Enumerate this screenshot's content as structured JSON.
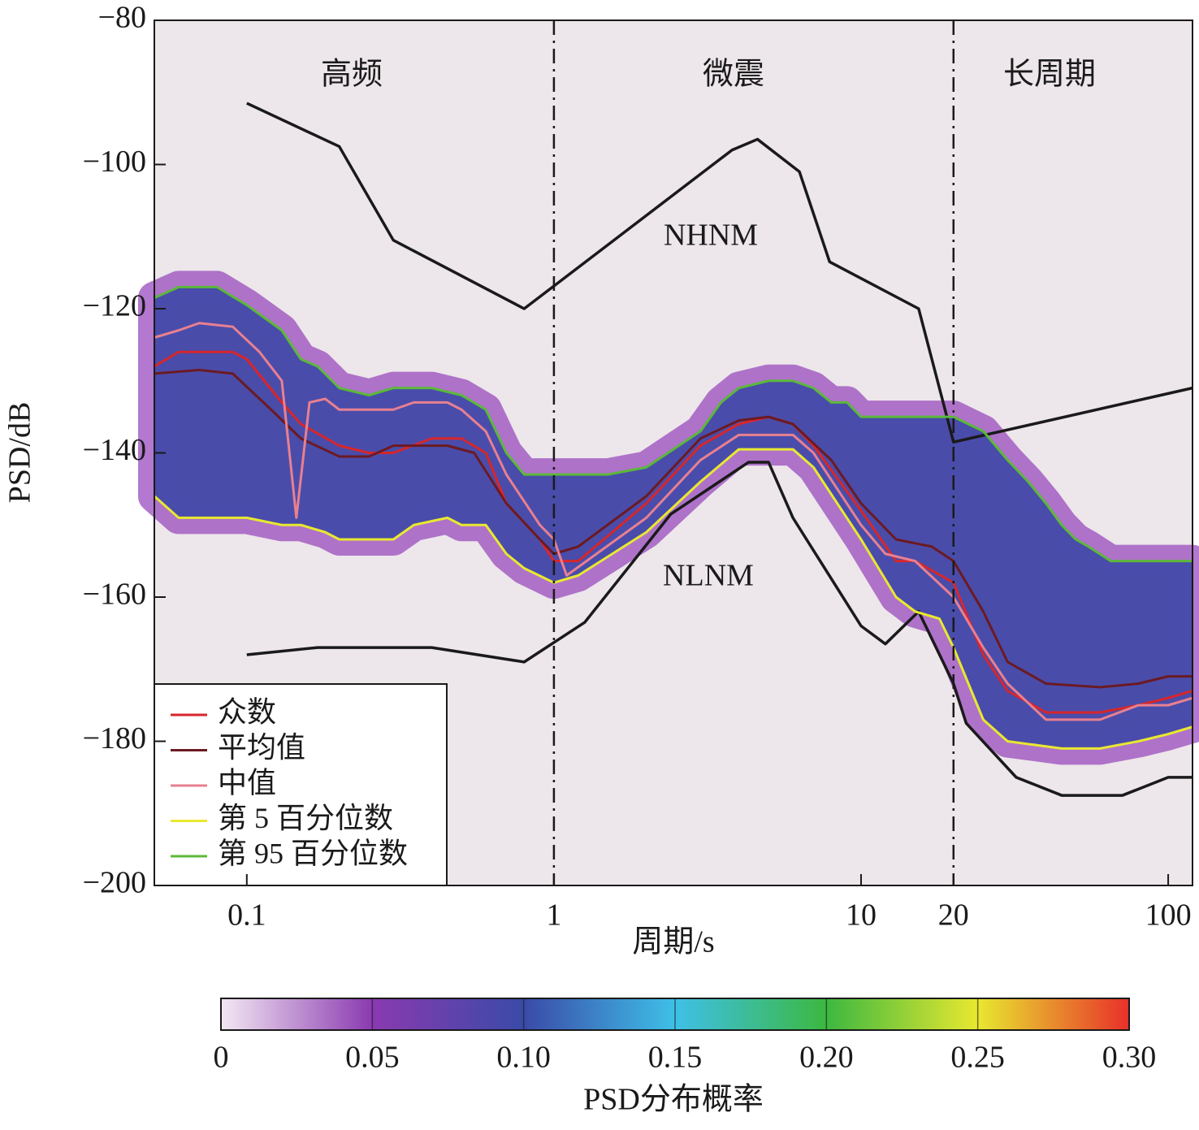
{
  "chart_data": {
    "type": "line",
    "xlabel": "周期/s",
    "ylabel": "PSD/dB",
    "xscale": "log",
    "xlim": [
      0.05,
      120
    ],
    "ylim": [
      -200,
      -80
    ],
    "xticks": [
      0.1,
      1,
      10,
      20,
      100
    ],
    "yticks": [
      {
        "value": -80,
        "label": "−80"
      },
      {
        "value": -100,
        "label": "−100"
      },
      {
        "value": -120,
        "label": "−120"
      },
      {
        "value": -140,
        "label": "−140"
      },
      {
        "value": -160,
        "label": "−160"
      },
      {
        "value": -180,
        "label": "−180"
      },
      {
        "value": -200,
        "label": "−200"
      }
    ],
    "dividers": [
      1,
      20
    ],
    "regions": [
      "高频",
      "微震",
      "长周期"
    ],
    "reference_lines": [
      {
        "name": "NHNM",
        "color": "#1a1a1a",
        "x": [
          0.1,
          0.2,
          0.3,
          0.8,
          3.8,
          4.6,
          6.3,
          7.9,
          15.4,
          20,
          120
        ],
        "values": [
          -91.5,
          -97.5,
          -110.5,
          -120,
          -98,
          -96.5,
          -101,
          -113.5,
          -120,
          -138.5,
          -131
        ]
      },
      {
        "name": "NLNM",
        "color": "#1a1a1a",
        "x": [
          0.1,
          0.17,
          0.4,
          0.8,
          1.26,
          2.4,
          4.3,
          5,
          6,
          10,
          12,
          15.4,
          20,
          22,
          32,
          45,
          71,
          100,
          120
        ],
        "values": [
          -168,
          -167,
          -167,
          -169,
          -163.5,
          -148.5,
          -141.3,
          -141.3,
          -149,
          -164,
          -166.5,
          -162,
          -172,
          -177.5,
          -185,
          -187.5,
          -187.5,
          -185,
          -185
        ]
      }
    ],
    "series": [
      {
        "name": "众数",
        "color": "#d7262b",
        "x": [
          0.05,
          0.06,
          0.09,
          0.1,
          0.13,
          0.15,
          0.2,
          0.25,
          0.3,
          0.4,
          0.5,
          0.6,
          0.7,
          0.9,
          1,
          1.2,
          2,
          3,
          4,
          5,
          6,
          7,
          10,
          13,
          15,
          20,
          25,
          30,
          40,
          60,
          80,
          100,
          120
        ],
        "values": [
          -128,
          -126,
          -126,
          -127,
          -133,
          -136,
          -139,
          -140,
          -140,
          -138,
          -138,
          -140,
          -147,
          -152,
          -155,
          -155,
          -147,
          -139,
          -136,
          -135,
          -136,
          -139,
          -148,
          -155,
          -155,
          -158,
          -168,
          -173,
          -176,
          -176,
          -175,
          -174,
          -173
        ]
      },
      {
        "name": "平均值",
        "color": "#6b1a22",
        "x": [
          0.05,
          0.07,
          0.09,
          0.12,
          0.15,
          0.2,
          0.25,
          0.3,
          0.45,
          0.55,
          0.7,
          0.9,
          1,
          1.2,
          2,
          3,
          4,
          5,
          6,
          8,
          10,
          13,
          17,
          20,
          25,
          30,
          40,
          60,
          80,
          100,
          120
        ],
        "values": [
          -129,
          -128.5,
          -129,
          -134,
          -138,
          -140.5,
          -140.5,
          -139,
          -139,
          -140,
          -147,
          -152,
          -154,
          -153,
          -146,
          -138,
          -135.5,
          -135,
          -136,
          -141,
          -147,
          -152,
          -153,
          -155,
          -162,
          -169,
          -172,
          -172.5,
          -172,
          -171,
          -171
        ]
      },
      {
        "name": "中值",
        "color": "#e88090",
        "x": [
          0.05,
          0.06,
          0.07,
          0.09,
          0.11,
          0.13,
          0.145,
          0.16,
          0.18,
          0.2,
          0.3,
          0.35,
          0.45,
          0.5,
          0.6,
          0.7,
          0.9,
          1,
          1.1,
          2,
          3,
          4,
          6,
          7,
          10,
          12,
          15,
          20,
          25,
          30,
          40,
          60,
          80,
          100,
          120
        ],
        "values": [
          -124,
          -123,
          -122,
          -122.5,
          -126,
          -130,
          -149,
          -133,
          -132.5,
          -134,
          -134,
          -133,
          -133,
          -134,
          -137,
          -143,
          -150,
          -152,
          -157,
          -149,
          -141,
          -137.5,
          -137.5,
          -140,
          -150,
          -154,
          -155,
          -160,
          -167,
          -172,
          -177,
          -177,
          -175,
          -175,
          -174
        ]
      },
      {
        "name": "第 5 百分位数",
        "color": "#e8e830",
        "x": [
          0.05,
          0.06,
          0.1,
          0.13,
          0.15,
          0.18,
          0.2,
          0.3,
          0.35,
          0.45,
          0.5,
          0.6,
          0.7,
          0.8,
          1,
          1.2,
          2,
          3,
          4,
          6,
          7,
          10,
          13,
          15,
          18,
          20,
          25,
          30,
          45,
          60,
          80,
          100,
          120
        ],
        "values": [
          -146,
          -149,
          -149,
          -150,
          -150,
          -151,
          -152,
          -152,
          -150,
          -149,
          -150,
          -150,
          -154,
          -156,
          -158,
          -157,
          -151,
          -144,
          -139.5,
          -139.5,
          -142,
          -152,
          -160,
          -162,
          -163,
          -167,
          -177,
          -180,
          -181,
          -181,
          -180,
          -179,
          -178
        ]
      },
      {
        "name": "第 95 百分位数",
        "color": "#5cb83a",
        "x": [
          0.05,
          0.06,
          0.08,
          0.1,
          0.13,
          0.15,
          0.17,
          0.2,
          0.25,
          0.3,
          0.4,
          0.5,
          0.6,
          0.7,
          0.8,
          1,
          1.5,
          2,
          3,
          3.5,
          4,
          5,
          6,
          7,
          8,
          9,
          10,
          15,
          20,
          25,
          30,
          35,
          40,
          45,
          50,
          55,
          65,
          120
        ],
        "values": [
          -118.5,
          -117,
          -117,
          -119.5,
          -123,
          -127,
          -128,
          -131,
          -132,
          -131,
          -131,
          -132,
          -134,
          -140,
          -143,
          -143,
          -143,
          -142,
          -137,
          -133,
          -131,
          -130,
          -130,
          -131,
          -133,
          -133,
          -135,
          -135,
          -135,
          -137,
          -141,
          -144,
          -147,
          -150,
          -152,
          -153,
          -155,
          -155
        ]
      }
    ],
    "colorbar": {
      "label": "PSD分布概率",
      "lim": [
        0,
        0.3
      ],
      "ticks": [
        0,
        0.05,
        {
          "value": 0.1,
          "label": "0.10"
        },
        0.15,
        {
          "value": 0.2,
          "label": "0.20"
        },
        0.25,
        {
          "value": 0.3,
          "label": "0.30"
        }
      ],
      "colors": [
        "#f3e8f3",
        "#8a3ab0",
        "#3a4aa8",
        "#3ec0e8",
        "#3cb840",
        "#e8e830",
        "#e8302a"
      ]
    }
  }
}
